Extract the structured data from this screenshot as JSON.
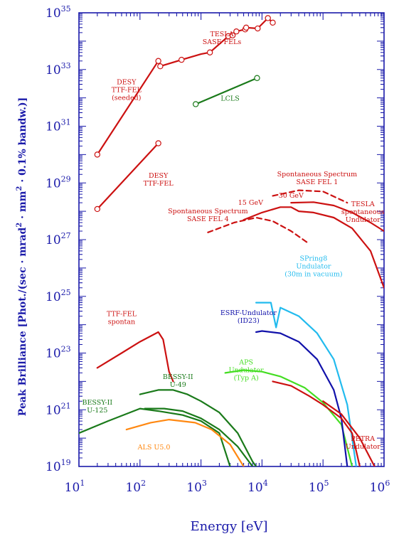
{
  "chart_data": {
    "type": "line",
    "xlabel": "Energy [eV]",
    "ylabel": {
      "lead": "Peak Brilliance [Phot./(sec · mrad",
      "sup1": "2",
      "mid": " · mm",
      "sup2": "2",
      "tail": " · 0.1% bandw.)]"
    },
    "x_scale": "log",
    "y_scale": "log",
    "xlim": [
      10,
      1000000
    ],
    "ylim": [
      1e+19,
      1e+35
    ],
    "x_ticks": [
      {
        "base": "10",
        "exp": "1",
        "value": 10
      },
      {
        "base": "10",
        "exp": "2",
        "value": 100
      },
      {
        "base": "10",
        "exp": "3",
        "value": 1000
      },
      {
        "base": "10",
        "exp": "4",
        "value": 10000
      },
      {
        "base": "10",
        "exp": "5",
        "value": 100000
      },
      {
        "base": "10",
        "exp": "6",
        "value": 1000000
      }
    ],
    "y_ticks": [
      {
        "base": "10",
        "exp": "19",
        "value": 1e+19
      },
      {
        "base": "10",
        "exp": "21",
        "value": 1e+21
      },
      {
        "base": "10",
        "exp": "23",
        "value": 1e+23
      },
      {
        "base": "10",
        "exp": "25",
        "value": 1e+25
      },
      {
        "base": "10",
        "exp": "27",
        "value": 1e+27
      },
      {
        "base": "10",
        "exp": "29",
        "value": 1e+29
      },
      {
        "base": "10",
        "exp": "31",
        "value": 1e+31
      },
      {
        "base": "10",
        "exp": "33",
        "value": 1e+33
      },
      {
        "base": "10",
        "exp": "35",
        "value": 1e+35
      }
    ],
    "colors": {
      "axis": "#1a1aaa",
      "red": "#cc1111",
      "green": "#1a7a1a",
      "light_green": "#44dd22",
      "cyan": "#22bbee",
      "navy": "#1111aa",
      "orange": "#ff8811"
    },
    "series": [
      {
        "color": "red",
        "markers": true,
        "points": [
          [
            20,
            1e+30
          ],
          [
            200,
            2e+33
          ]
        ]
      },
      {
        "color": "red",
        "markers": true,
        "points": [
          [
            20,
            1.2e+28
          ],
          [
            200,
            2.5e+30
          ]
        ]
      },
      {
        "color": "red",
        "markers": true,
        "points": [
          [
            215,
            1.3e+33
          ],
          [
            480,
            2.2e+33
          ],
          [
            1000,
            3.5e+33
          ],
          [
            1400,
            4e+33
          ],
          [
            2800,
            1.5e+34
          ],
          [
            3300,
            1.6e+34
          ],
          [
            3800,
            2.2e+34
          ],
          [
            5300,
            2.6e+34
          ],
          [
            5500,
            3e+34
          ],
          [
            8500,
            2.8e+34
          ],
          [
            12500,
            6.5e+34
          ],
          [
            15000,
            4.5e+34
          ]
        ],
        "marker_points": [
          [
            215,
            1.3e+33
          ],
          [
            480,
            2.2e+33
          ],
          [
            1400,
            4e+33
          ],
          [
            2800,
            1.5e+34
          ],
          [
            3300,
            1.6e+34
          ],
          [
            3800,
            2.2e+34
          ],
          [
            5300,
            2.6e+34
          ],
          [
            5500,
            3e+34
          ],
          [
            8500,
            2.8e+34
          ],
          [
            12500,
            6.5e+34
          ],
          [
            15000,
            4.5e+34
          ]
        ]
      },
      {
        "color": "green",
        "markers": true,
        "points": [
          [
            820,
            6e+31
          ],
          [
            8300,
            5e+32
          ]
        ]
      },
      {
        "color": "red",
        "dashed": true,
        "points": [
          [
            1300,
            1.8e+27
          ],
          [
            3500,
            4e+27
          ],
          [
            8000,
            6e+27
          ],
          [
            15000,
            4.5e+27
          ],
          [
            30000,
            2e+27
          ],
          [
            60000,
            7e+26
          ]
        ]
      },
      {
        "color": "red",
        "dashed": true,
        "points": [
          [
            15000,
            3.5e+28
          ],
          [
            40000,
            5.5e+28
          ],
          [
            100000,
            5e+28
          ],
          [
            250000,
            2e+28
          ]
        ]
      },
      {
        "color": "red",
        "points": [
          [
            5000,
            5e+27
          ],
          [
            10000,
            9e+27
          ],
          [
            20000,
            1.4e+28
          ],
          [
            30000,
            1.4e+28
          ],
          [
            40000,
            1e+28
          ],
          [
            70000,
            9e+27
          ],
          [
            150000,
            6e+27
          ],
          [
            300000,
            2.5e+27
          ],
          [
            600000,
            4e+26
          ],
          [
            1000000,
            2e+25
          ]
        ]
      },
      {
        "color": "red",
        "points": [
          [
            30000,
            2e+28
          ],
          [
            70000,
            2.1e+28
          ],
          [
            150000,
            1.6e+28
          ],
          [
            300000,
            9e+27
          ],
          [
            600000,
            4e+27
          ],
          [
            1000000,
            2e+27
          ]
        ]
      },
      {
        "color": "red",
        "points": [
          [
            20,
            3e+22
          ],
          [
            50,
            1e+23
          ],
          [
            100,
            2.5e+23
          ],
          [
            200,
            5.5e+23
          ],
          [
            240,
            3e+23
          ],
          [
            300,
            2.2e+22
          ],
          [
            350,
            1e+22
          ]
        ]
      },
      {
        "color": "green",
        "points": [
          [
            10,
            1.5e+20
          ],
          [
            30,
            4e+20
          ],
          [
            100,
            1.1e+21
          ],
          [
            200,
            9e+20
          ],
          [
            500,
            6.5e+20
          ],
          [
            1000,
            4e+20
          ],
          [
            2000,
            1.5e+20
          ],
          [
            3000,
            1e+19
          ]
        ]
      },
      {
        "color": "green",
        "points": [
          [
            120,
            1.1e+21
          ],
          [
            250,
            1.1e+21
          ],
          [
            500,
            9e+20
          ],
          [
            1000,
            5e+20
          ],
          [
            2000,
            2e+20
          ],
          [
            4000,
            5e+19
          ],
          [
            7000,
            1e+19
          ]
        ]
      },
      {
        "color": "green",
        "points": [
          [
            100,
            3.5e+21
          ],
          [
            200,
            5e+21
          ],
          [
            350,
            5e+21
          ],
          [
            600,
            3.5e+21
          ],
          [
            1000,
            2e+21
          ],
          [
            2000,
            8e+20
          ],
          [
            4000,
            1.5e+20
          ],
          [
            7000,
            1.5e+19
          ],
          [
            8000,
            1e+19
          ]
        ]
      },
      {
        "color": "orange",
        "points": [
          [
            60,
            2e+20
          ],
          [
            150,
            3.5e+20
          ],
          [
            300,
            4.5e+20
          ],
          [
            800,
            3.5e+20
          ],
          [
            1500,
            2e+20
          ],
          [
            3000,
            6e+19
          ],
          [
            5000,
            1e+19
          ]
        ]
      },
      {
        "color": "light_green",
        "points": [
          [
            2500,
            2e+22
          ],
          [
            5000,
            2.5e+22
          ],
          [
            10000,
            2.2e+22
          ],
          [
            20000,
            1.5e+22
          ],
          [
            50000,
            6e+21
          ],
          [
            100000,
            1.8e+21
          ],
          [
            200000,
            3e+20
          ],
          [
            300000,
            1e+19
          ]
        ]
      },
      {
        "color": "navy",
        "points": [
          [
            8000,
            5.5e+23
          ],
          [
            10000,
            6e+23
          ],
          [
            20000,
            5e+23
          ],
          [
            40000,
            2.5e+23
          ],
          [
            80000,
            6e+22
          ],
          [
            150000,
            5e+21
          ],
          [
            200000,
            5e+20
          ],
          [
            250000,
            1e+19
          ]
        ]
      },
      {
        "color": "cyan",
        "points": [
          [
            8000,
            6e+24
          ],
          [
            14000,
            6e+24
          ],
          [
            17000,
            8e+23
          ],
          [
            20000,
            4e+24
          ],
          [
            40000,
            2e+24
          ],
          [
            80000,
            5e+23
          ],
          [
            150000,
            6e+22
          ],
          [
            250000,
            1.5e+21
          ],
          [
            350000,
            1e+19
          ]
        ]
      },
      {
        "color": "red",
        "points": [
          [
            15000,
            1e+22
          ],
          [
            30000,
            7e+21
          ],
          [
            60000,
            3e+21
          ],
          [
            100000,
            1.5e+21
          ],
          [
            200000,
            5e+20
          ],
          [
            300000,
            1.5e+20
          ],
          [
            400000,
            1e+19
          ]
        ]
      },
      {
        "color": "red",
        "points": [
          [
            100000,
            2e+21
          ],
          [
            200000,
            7e+20
          ],
          [
            400000,
            1e+20
          ],
          [
            700000,
            1e+19
          ]
        ]
      }
    ],
    "annotations": [
      {
        "lines": [
          "DESY",
          "TTF-FEL",
          "(seeded)"
        ],
        "color": "red",
        "x": 60,
        "y": 3e+32
      },
      {
        "lines": [
          "TESLA",
          "SASE FELs"
        ],
        "color": "red",
        "x": 2200,
        "y": 1.5e+34
      },
      {
        "lines": [
          "LCLS"
        ],
        "color": "green",
        "x": 3000,
        "y": 8e+31
      },
      {
        "lines": [
          "DESY",
          "TTF-FEL"
        ],
        "color": "red",
        "x": 200,
        "y": 1.5e+29
      },
      {
        "lines": [
          "Spontaneous Spectrum",
          "SASE FEL 1"
        ],
        "color": "red",
        "x": 80000,
        "y": 1.7e+29
      },
      {
        "lines": [
          "30 GeV"
        ],
        "color": "red",
        "x": 30000,
        "y": 3e+28
      },
      {
        "lines": [
          "15 GeV"
        ],
        "color": "red",
        "x": 6500,
        "y": 1.7e+28
      },
      {
        "lines": [
          "Spontaneous Spectrum",
          "SASE FEL 4"
        ],
        "color": "red",
        "x": 1300,
        "y": 8.5e+27
      },
      {
        "lines": [
          "TESLA",
          "spontaneous",
          "Undulator"
        ],
        "color": "red",
        "x": 450000,
        "y": 1.5e+28
      },
      {
        "lines": [
          "SPring8",
          "Undulator",
          "(30m in vacuum)"
        ],
        "color": "cyan",
        "x": 70000,
        "y": 1.8e+26
      },
      {
        "lines": [
          "ESRF-Undulator",
          "(ID23)"
        ],
        "color": "navy",
        "x": 6000,
        "y": 2.2e+24
      },
      {
        "lines": [
          "TTF-FEL",
          "spontan"
        ],
        "color": "red",
        "x": 50,
        "y": 2e+24
      },
      {
        "lines": [
          "BESSY-II",
          "U-49"
        ],
        "color": "green",
        "x": 420,
        "y": 1.2e+22
      },
      {
        "lines": [
          "APS",
          "Undulator",
          "(Typ A)"
        ],
        "color": "light_green",
        "x": 5500,
        "y": 4e+22
      },
      {
        "lines": [
          "BESSY-II",
          "U-125"
        ],
        "color": "green",
        "x": 20,
        "y": 1.5e+21
      },
      {
        "lines": [
          "ALS U5.0"
        ],
        "color": "orange",
        "x": 170,
        "y": 4e+19
      },
      {
        "lines": [
          "PETRA",
          "Undulator"
        ],
        "color": "red",
        "x": 450000,
        "y": 8e+19
      }
    ]
  }
}
